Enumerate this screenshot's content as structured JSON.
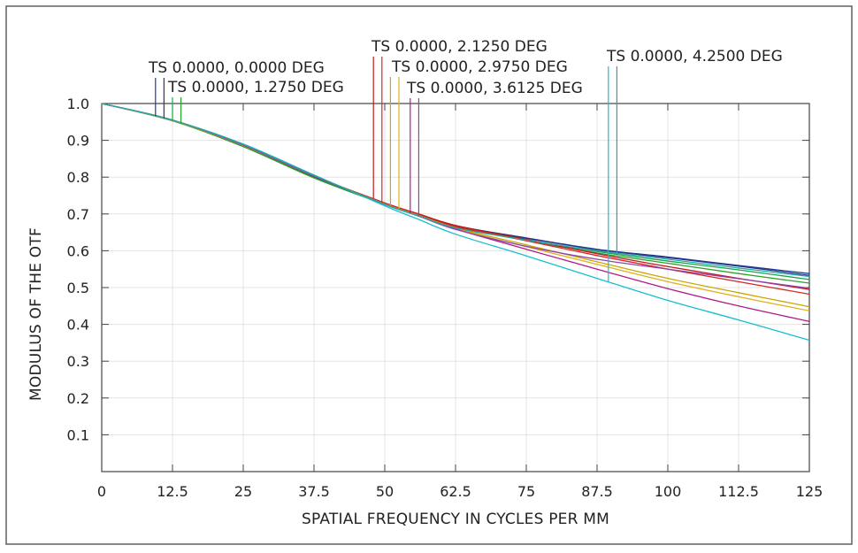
{
  "chart_data": {
    "type": "line",
    "xlabel": "SPATIAL FREQUENCY IN CYCLES PER MM",
    "ylabel": "MODULUS OF THE OTF",
    "xlim": [
      0,
      125
    ],
    "ylim": [
      0,
      1.0
    ],
    "x_ticks": [
      "0",
      "12.5",
      "25",
      "37.5",
      "50",
      "62.5",
      "75",
      "87.5",
      "100",
      "112.5",
      "125"
    ],
    "x_tick_values": [
      0,
      12.5,
      25,
      37.5,
      50,
      62.5,
      75,
      87.5,
      100,
      112.5,
      125
    ],
    "y_ticks": [
      "0.1",
      "0.2",
      "0.3",
      "0.4",
      "0.5",
      "0.6",
      "0.7",
      "0.8",
      "0.9",
      "1.0"
    ],
    "y_tick_values": [
      0.1,
      0.2,
      0.3,
      0.4,
      0.5,
      0.6,
      0.7,
      0.8,
      0.9,
      1.0
    ],
    "grid": true,
    "x": [
      0,
      12.5,
      25,
      37.5,
      50,
      56,
      62.5,
      75,
      87.5,
      100,
      112.5,
      125
    ],
    "series": [
      {
        "color": "#1f3a93",
        "values": [
          1.0,
          0.955,
          0.885,
          0.8,
          0.728,
          0.699,
          0.668,
          0.635,
          0.604,
          0.583,
          0.56,
          0.538
        ]
      },
      {
        "color": "#27348b",
        "values": [
          1.0,
          0.955,
          0.885,
          0.8,
          0.728,
          0.699,
          0.668,
          0.634,
          0.603,
          0.581,
          0.558,
          0.533
        ]
      },
      {
        "color": "#18a550",
        "values": [
          1.0,
          0.953,
          0.883,
          0.798,
          0.726,
          0.697,
          0.665,
          0.63,
          0.598,
          0.572,
          0.548,
          0.522
        ]
      },
      {
        "color": "#2ca02c",
        "values": [
          1.0,
          0.953,
          0.883,
          0.798,
          0.726,
          0.697,
          0.665,
          0.628,
          0.594,
          0.566,
          0.538,
          0.512
        ]
      },
      {
        "color": "#c01818",
        "values": [
          1.0,
          0.954,
          0.886,
          0.803,
          0.73,
          0.7,
          0.669,
          0.631,
          0.592,
          0.557,
          0.525,
          0.495
        ]
      },
      {
        "color": "#d62728",
        "values": [
          1.0,
          0.954,
          0.886,
          0.803,
          0.728,
          0.698,
          0.666,
          0.627,
          0.587,
          0.55,
          0.516,
          0.482
        ]
      },
      {
        "color": "#c8a800",
        "values": [
          1.0,
          0.954,
          0.886,
          0.803,
          0.727,
          0.696,
          0.662,
          0.616,
          0.57,
          0.525,
          0.486,
          0.448
        ]
      },
      {
        "color": "#e0b020",
        "values": [
          1.0,
          0.954,
          0.886,
          0.803,
          0.727,
          0.695,
          0.66,
          0.611,
          0.563,
          0.516,
          0.475,
          0.437
        ]
      },
      {
        "color": "#b0198c",
        "values": [
          1.0,
          0.955,
          0.887,
          0.803,
          0.726,
          0.694,
          0.659,
          0.604,
          0.55,
          0.497,
          0.45,
          0.408
        ]
      },
      {
        "color": "#8e44ad",
        "values": [
          1.0,
          0.955,
          0.887,
          0.803,
          0.726,
          0.694,
          0.658,
          0.612,
          0.577,
          0.55,
          0.524,
          0.498
        ]
      },
      {
        "color": "#17becf",
        "values": [
          1.0,
          0.955,
          0.89,
          0.806,
          0.722,
          0.685,
          0.645,
          0.586,
          0.525,
          0.465,
          0.412,
          0.357
        ]
      },
      {
        "color": "#2aa6a0",
        "values": [
          1.0,
          0.955,
          0.889,
          0.805,
          0.726,
          0.695,
          0.662,
          0.629,
          0.6,
          0.577,
          0.553,
          0.53
        ]
      }
    ],
    "legend": [
      {
        "label": "TS 0.0000, 0.0000 DEG",
        "colors": [
          "#1f3a93",
          "#27348b"
        ],
        "marker_x": [
          9.5,
          11.0
        ]
      },
      {
        "label": "TS 0.0000, 1.2750 DEG",
        "colors": [
          "#18a550",
          "#2ca02c"
        ],
        "marker_x": [
          12.5,
          14.0
        ]
      },
      {
        "label": "TS 0.0000, 2.1250 DEG",
        "colors": [
          "#c01818",
          "#d62728"
        ],
        "marker_x": [
          48.0,
          49.5
        ]
      },
      {
        "label": "TS 0.0000, 2.9750 DEG",
        "colors": [
          "#c8a800",
          "#e0b020"
        ],
        "marker_x": [
          51.0,
          52.5
        ]
      },
      {
        "label": "TS 0.0000, 3.6125 DEG",
        "colors": [
          "#b0198c",
          "#8e44ad"
        ],
        "marker_x": [
          54.5,
          56.0
        ]
      },
      {
        "label": "TS 0.0000, 4.2500 DEG",
        "colors": [
          "#17becf",
          "#2aa6a0"
        ],
        "marker_x": [
          89.5,
          91.0
        ]
      }
    ]
  }
}
